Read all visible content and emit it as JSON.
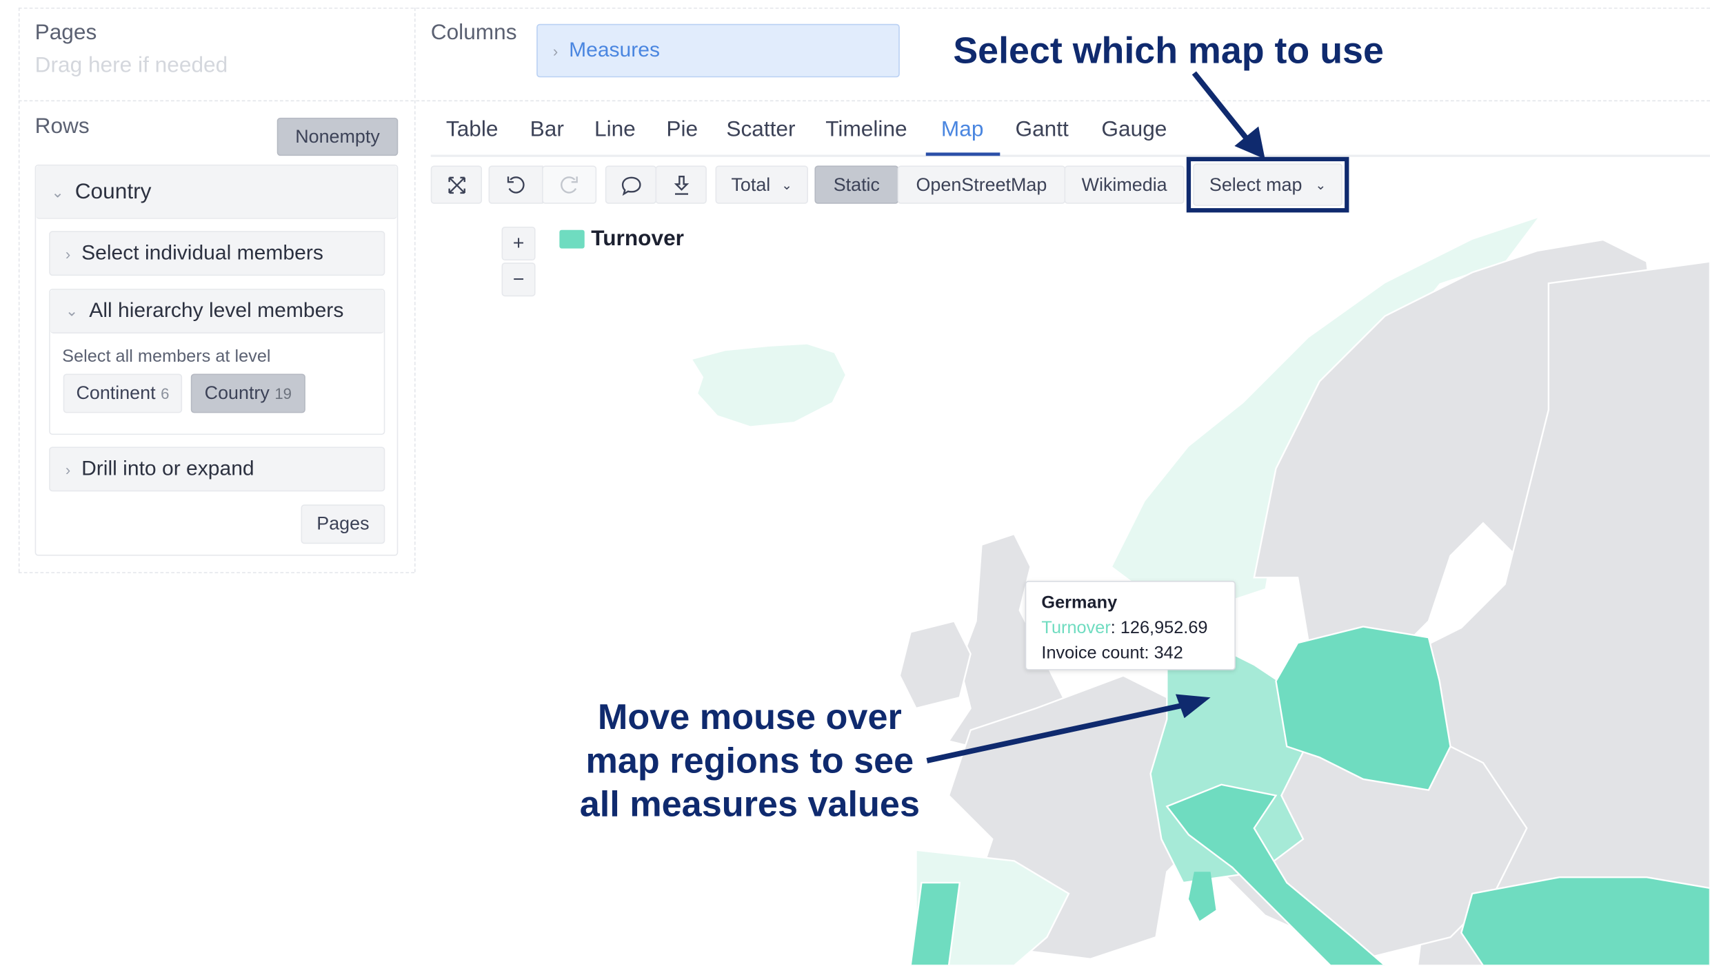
{
  "pages": {
    "label": "Pages",
    "placeholder": "Drag here if needed"
  },
  "columns": {
    "label": "Columns",
    "chip": "Measures"
  },
  "rows": {
    "label": "Rows",
    "nonempty_button": "Nonempty",
    "dimension": "Country",
    "sections": {
      "select_individual": "Select individual members",
      "all_hierarchy": "All hierarchy level members",
      "select_all_at_level": "Select all members at level",
      "levels": [
        {
          "name": "Continent",
          "count": "6"
        },
        {
          "name": "Country",
          "count": "19",
          "active": true
        }
      ],
      "drill": "Drill into or expand"
    },
    "pages_button": "Pages"
  },
  "chart_tabs": [
    "Table",
    "Bar",
    "Line",
    "Pie",
    "Scatter",
    "Timeline",
    "Map",
    "Gantt",
    "Gauge"
  ],
  "active_tab": "Map",
  "toolbar": {
    "icons": [
      "fullscreen-icon",
      "undo-icon",
      "redo-icon",
      "comment-icon",
      "download-icon"
    ],
    "total_select": "Total",
    "map_modes": [
      "Static",
      "OpenStreetMap",
      "Wikimedia"
    ],
    "active_mode": "Static",
    "select_map": "Select map"
  },
  "map": {
    "zoom_in": "+",
    "zoom_out": "−",
    "legend": "Turnover",
    "legend_color": "#6fdcc0",
    "tooltip": {
      "title": "Germany",
      "measure": "Turnover",
      "value": ": 126,952.69",
      "line2": "Invoice count: 342"
    }
  },
  "annotations": {
    "top": "Select which map to use",
    "bottom": [
      "Move mouse over",
      "map regions to see",
      "all measures values"
    ],
    "color": "#0f2a6e"
  },
  "colors": {
    "accent": "#4a86e0",
    "land": "#e2e3e6",
    "high": "#6fdcc0",
    "mid": "#a6ead7",
    "low": "#e6f8f2"
  }
}
